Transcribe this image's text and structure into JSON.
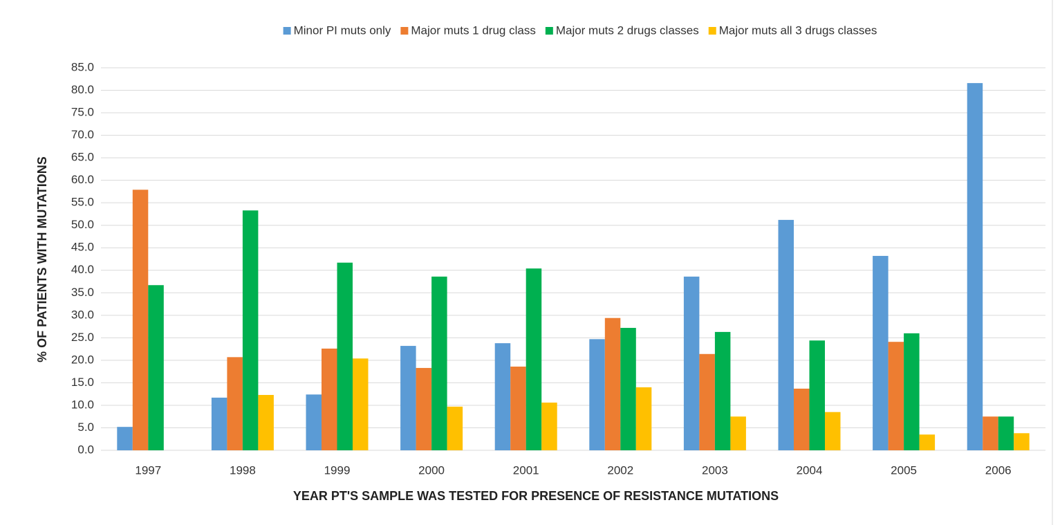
{
  "chart_data": {
    "type": "bar",
    "xlabel": "YEAR PT'S SAMPLE WAS TESTED FOR PRESENCE  OF RESISTANCE  MUTATIONS",
    "ylabel": "% OF PATIENTS WITH MUTATIONS",
    "categories": [
      "1997",
      "1998",
      "1999",
      "2000",
      "2001",
      "2002",
      "2003",
      "2004",
      "2005",
      "2006"
    ],
    "series": [
      {
        "name": "Minor PI muts only",
        "color": "#5b9bd5",
        "values": [
          5.2,
          11.7,
          12.4,
          23.2,
          23.8,
          24.7,
          38.6,
          51.2,
          43.2,
          81.6
        ]
      },
      {
        "name": "Major muts 1 drug class",
        "color": "#ed7d31",
        "values": [
          57.9,
          20.7,
          22.6,
          18.3,
          18.6,
          29.4,
          21.4,
          13.7,
          24.1,
          7.5
        ]
      },
      {
        "name": "Major muts 2 drugs classes",
        "color": "#00b050",
        "values": [
          36.7,
          53.3,
          41.7,
          38.6,
          40.4,
          27.2,
          26.3,
          24.4,
          26.0,
          7.5
        ]
      },
      {
        "name": "Major muts all 3 drugs classes",
        "color": "#ffc000",
        "values": [
          0,
          12.3,
          20.4,
          9.7,
          10.6,
          14.0,
          7.5,
          8.5,
          3.5,
          3.8
        ]
      }
    ],
    "ylim": [
      0,
      85
    ],
    "yticks": [
      {
        "value": 0,
        "label": "0.0"
      },
      {
        "value": 5,
        "label": "5.0"
      },
      {
        "value": 10,
        "label": "10.0"
      },
      {
        "value": 15,
        "label": "15.0"
      },
      {
        "value": 20,
        "label": "20.0"
      },
      {
        "value": 25,
        "label": "25.0"
      },
      {
        "value": 30,
        "label": "30.0"
      },
      {
        "value": 35,
        "label": "35.0"
      },
      {
        "value": 40,
        "label": "40.0"
      },
      {
        "value": 45,
        "label": "45.0"
      },
      {
        "value": 50,
        "label": "50.0"
      },
      {
        "value": 55,
        "label": "55.0"
      },
      {
        "value": 60,
        "label": "60.0"
      },
      {
        "value": 65,
        "label": "65.0"
      },
      {
        "value": 70,
        "label": "70.0"
      },
      {
        "value": 75,
        "label": "75.0"
      },
      {
        "value": 80,
        "label": "80.0"
      },
      {
        "value": 85,
        "label": "85.0"
      }
    ],
    "grid": true,
    "legend": "top"
  }
}
